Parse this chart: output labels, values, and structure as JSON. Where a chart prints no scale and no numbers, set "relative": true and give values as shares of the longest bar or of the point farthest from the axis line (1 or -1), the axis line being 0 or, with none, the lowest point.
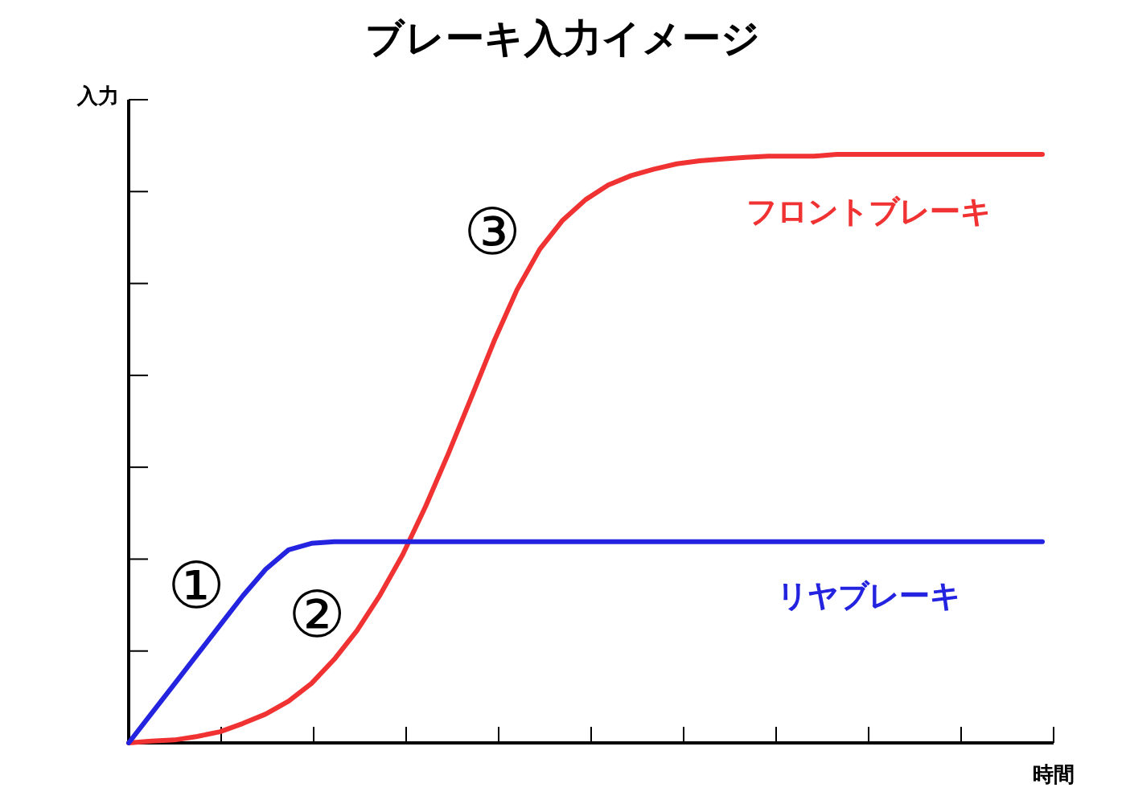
{
  "chart_data": {
    "type": "line",
    "title": "ブレーキ入力イメージ",
    "xlabel": "時間",
    "ylabel": "入力",
    "relative": true,
    "legend": false,
    "marker": "none",
    "line_style": "solid",
    "categories": [
      null,
      null,
      null,
      null,
      null,
      null,
      null,
      null,
      null,
      null,
      null,
      null,
      null,
      null,
      null,
      null,
      null,
      null,
      null,
      null,
      null,
      null,
      null,
      null,
      null,
      null,
      null,
      null,
      null,
      null,
      null,
      null,
      null,
      null,
      null,
      null,
      null,
      null,
      null,
      null,
      null
    ],
    "series": [
      {
        "name": "フロントブレーキ",
        "color": "#f03232",
        "values": [
          0,
          0.003,
          0.005,
          0.011,
          0.019,
          0.033,
          0.049,
          0.071,
          0.101,
          0.142,
          0.191,
          0.251,
          0.32,
          0.402,
          0.492,
          0.587,
          0.683,
          0.77,
          0.839,
          0.888,
          0.923,
          0.948,
          0.964,
          0.975,
          0.984,
          0.989,
          0.992,
          0.995,
          0.997,
          0.997,
          0.997,
          1,
          1,
          1,
          1,
          1,
          1,
          1,
          1,
          1,
          1
        ]
      },
      {
        "name": "リヤブレーキ",
        "color": "#2323e0",
        "values": [
          0,
          0.05,
          0.1,
          0.15,
          0.2,
          0.25,
          0.295,
          0.328,
          0.339,
          0.342,
          0.342,
          0.342,
          0.342,
          0.342,
          0.342,
          0.342,
          0.342,
          0.342,
          0.342,
          0.342,
          0.342,
          0.342,
          0.342,
          0.342,
          0.342,
          0.342,
          0.342,
          0.342,
          0.342,
          0.342,
          0.342,
          0.342,
          0.342,
          0.342,
          0.342,
          0.342,
          0.342,
          0.342,
          0.342,
          0.342,
          0.342
        ]
      }
    ],
    "annotations": [
      "①",
      "②",
      "③"
    ]
  }
}
